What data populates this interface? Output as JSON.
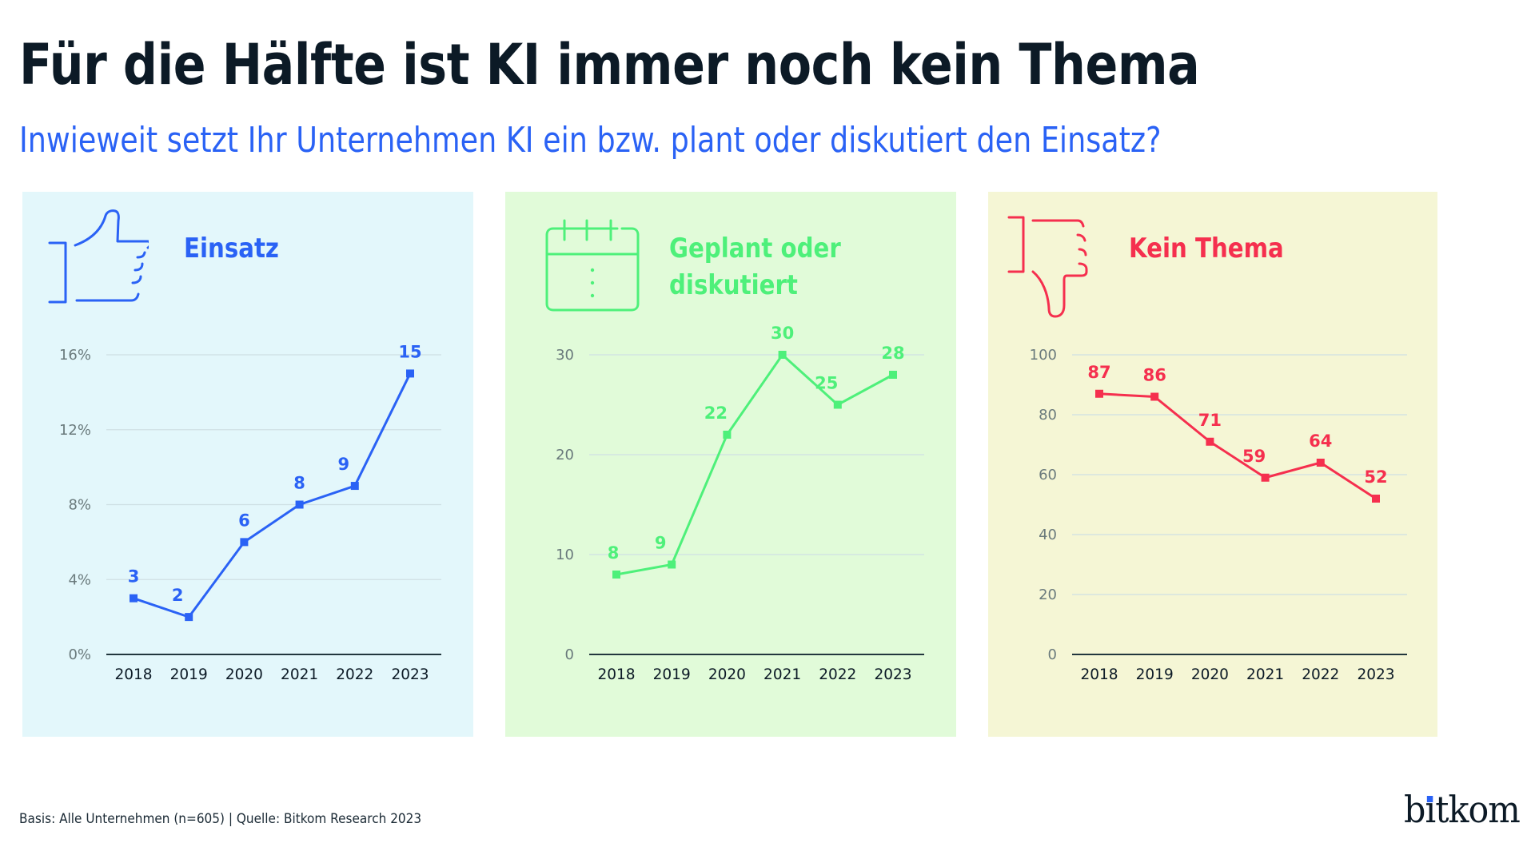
{
  "header": {
    "title": "Für die Hälfte ist KI immer noch kein Thema",
    "subtitle": "Inwieweit setzt Ihr Unternehmen KI ein bzw. plant oder diskutiert den Einsatz?"
  },
  "colors": {
    "title": "#0c1a26",
    "subtitle": "#2a62f5",
    "axis": "#22363d",
    "grid": "#cfe0e4",
    "tick": "#6a7a7c"
  },
  "panels": [
    {
      "id": "einsatz",
      "title_lines": [
        "Einsatz"
      ],
      "icon": "thumbs-up-icon",
      "accent": "#2a62f5",
      "background": "#e3f7fb"
    },
    {
      "id": "geplant",
      "title_lines": [
        "Geplant oder",
        "diskutiert"
      ],
      "icon": "calendar-icon",
      "accent": "#4ef07a",
      "background": "#e1fbd9"
    },
    {
      "id": "kein-thema",
      "title_lines": [
        "Kein Thema"
      ],
      "icon": "thumbs-down-icon",
      "accent": "#f52f4e",
      "background": "#f5f6d5"
    }
  ],
  "chart_data": [
    {
      "type": "line",
      "title": "Einsatz",
      "categories": [
        "2018",
        "2019",
        "2020",
        "2021",
        "2022",
        "2023"
      ],
      "series": [
        {
          "name": "Einsatz",
          "values": [
            3,
            2,
            6,
            8,
            9,
            15
          ]
        }
      ],
      "data_labels": [
        "3",
        "2",
        "6",
        "8",
        "9",
        "15"
      ],
      "ylim": [
        0,
        16
      ],
      "yticks": [
        0,
        4,
        8,
        12,
        16
      ],
      "ytick_labels": [
        "0%",
        "4%",
        "8%",
        "12%",
        "16%"
      ],
      "xlabel": "",
      "ylabel": "",
      "grid": true,
      "legend": "none"
    },
    {
      "type": "line",
      "title": "Geplant oder diskutiert",
      "categories": [
        "2018",
        "2019",
        "2020",
        "2021",
        "2022",
        "2023"
      ],
      "series": [
        {
          "name": "Geplant oder diskutiert",
          "values": [
            8,
            9,
            22,
            30,
            25,
            28
          ]
        }
      ],
      "data_labels": [
        "8",
        "9",
        "22",
        "30",
        "25",
        "28"
      ],
      "ylim": [
        0,
        30
      ],
      "yticks": [
        0,
        10,
        20,
        30
      ],
      "ytick_labels": [
        "0",
        "10",
        "20",
        "30"
      ],
      "xlabel": "",
      "ylabel": "",
      "grid": true,
      "legend": "none"
    },
    {
      "type": "line",
      "title": "Kein Thema",
      "categories": [
        "2018",
        "2019",
        "2020",
        "2021",
        "2022",
        "2023"
      ],
      "series": [
        {
          "name": "Kein Thema",
          "values": [
            87,
            86,
            71,
            59,
            64,
            52
          ]
        }
      ],
      "data_labels": [
        "87",
        "86",
        "71",
        "59",
        "64",
        "52"
      ],
      "ylim": [
        0,
        100
      ],
      "yticks": [
        0,
        20,
        40,
        60,
        80,
        100
      ],
      "ytick_labels": [
        "0",
        "20",
        "40",
        "60",
        "80",
        "100"
      ],
      "xlabel": "",
      "ylabel": "",
      "grid": true,
      "legend": "none"
    }
  ],
  "footer": {
    "source": "Basis: Alle Unternehmen (n=605) | Quelle: Bitkom Research 2023",
    "logo_text_before_dot": "b",
    "logo_dotted_letter": "ı",
    "logo_text_after_dot": "tkom"
  }
}
